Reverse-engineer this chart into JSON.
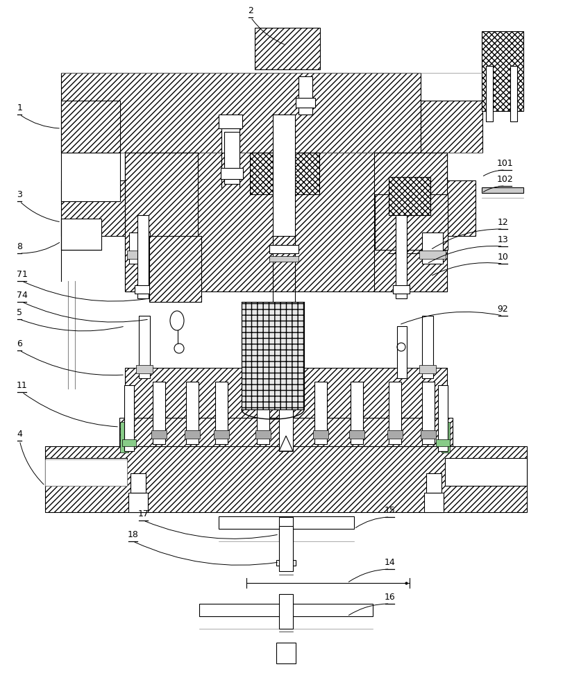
{
  "bg": "#ffffff",
  "lc": "#000000",
  "fig_w": 8.24,
  "fig_h": 10.0,
  "dpi": 100,
  "hatch_main": "////",
  "hatch_cross": "xxxx"
}
